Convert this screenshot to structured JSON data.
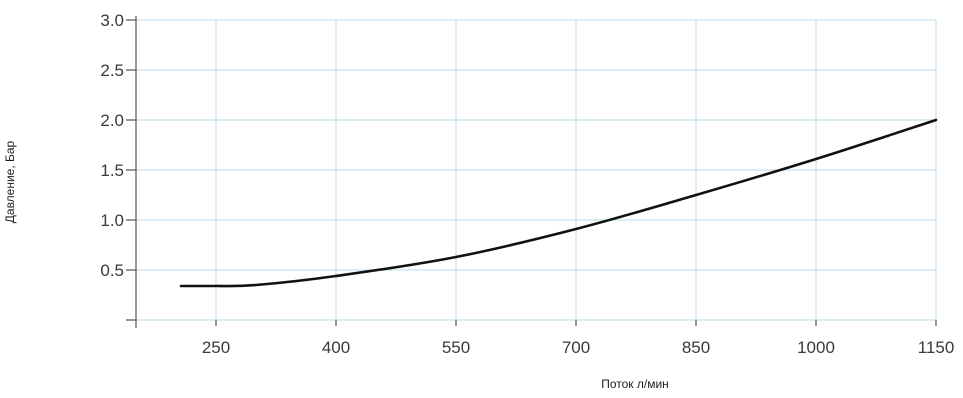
{
  "chart_data": {
    "type": "line",
    "title": "",
    "xlabel": "Поток л/мин",
    "ylabel": "Давление, Бар",
    "xlim": [
      150,
      1150
    ],
    "ylim": [
      0,
      3.0
    ],
    "x_ticks": [
      "250",
      "400",
      "550",
      "700",
      "850",
      "1000",
      "1150"
    ],
    "x_tick_values": [
      250,
      400,
      550,
      700,
      850,
      1000,
      1150
    ],
    "y_ticks": [
      "3.0",
      "2.5",
      "2.0",
      "1.5",
      "1.0",
      "0.5"
    ],
    "y_tick_values": [
      3.0,
      2.5,
      2.0,
      1.5,
      1.0,
      0.5
    ],
    "grid": true,
    "series": [
      {
        "x": [
          250,
          300,
          400,
          550,
          700,
          850,
          1000,
          1150
        ],
        "y": [
          0.34,
          0.35,
          0.44,
          0.63,
          0.91,
          1.25,
          1.61,
          2.0
        ]
      }
    ]
  }
}
